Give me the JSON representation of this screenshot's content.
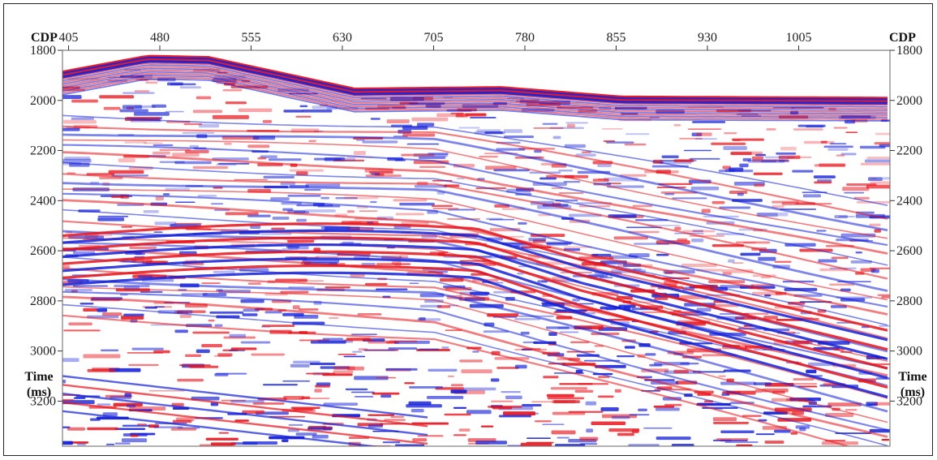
{
  "chart_data": {
    "type": "heatmap",
    "subtype": "seismic-section",
    "x_axis": {
      "label": "CDP",
      "ticks": [
        405,
        480,
        555,
        630,
        705,
        780,
        855,
        930,
        1005
      ],
      "range": [
        400,
        1080
      ]
    },
    "y_axis": {
      "label_line1": "Time",
      "label_line2": "(ms)",
      "ticks": [
        1800,
        2000,
        2200,
        2400,
        2600,
        2800,
        3000,
        3200
      ],
      "range": [
        1800,
        3380
      ],
      "inverted": true
    },
    "colormap": {
      "positive": "#e8121a",
      "negative": "#1420d8",
      "zero": "#ffffff"
    },
    "grid": false
  }
}
